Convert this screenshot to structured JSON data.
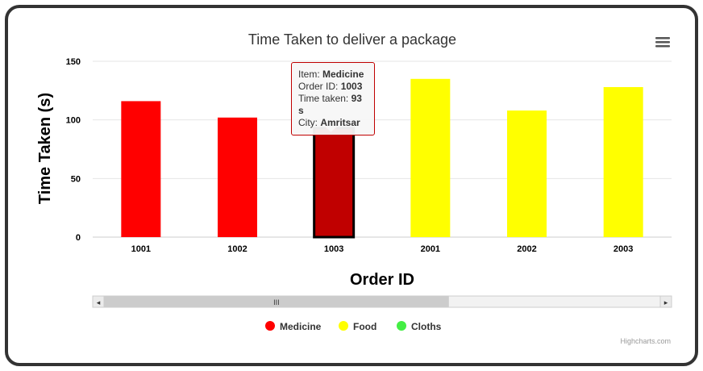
{
  "chart_data": {
    "type": "bar",
    "title": "Time Taken to deliver a package",
    "xlabel": "Order ID",
    "ylabel": "Time Taken (s)",
    "ylim": [
      0,
      150
    ],
    "yticks": [
      0,
      50,
      100,
      150
    ],
    "categories": [
      "1001",
      "1002",
      "1003",
      "2001",
      "2002",
      "2003"
    ],
    "values": [
      116,
      102,
      93,
      135,
      108,
      128
    ],
    "bar_colors": [
      "#ff0000",
      "#ff0000",
      "#c00000",
      "#ffff00",
      "#ffff00",
      "#ffff00"
    ],
    "highlighted_index": 2,
    "legend": [
      {
        "name": "Medicine",
        "color": "#ff0000"
      },
      {
        "name": "Food",
        "color": "#ffff00"
      },
      {
        "name": "Cloths",
        "color": "#44ee44"
      }
    ],
    "legend_position": "bottom"
  },
  "tooltip": {
    "item_label": "Item: ",
    "item_value": "Medicine",
    "order_label": "Order ID: ",
    "order_value": "1003",
    "time_label": "Time taken: ",
    "time_value": "93 s",
    "city_label": "City: ",
    "city_value": "Amritsar"
  },
  "scrollbar": {
    "left_arrow": "◂",
    "right_arrow": "▸",
    "grip": "III",
    "visible_fraction": 0.62
  },
  "credits": "Highcharts.com",
  "menu_icon": "hamburger-menu-icon"
}
